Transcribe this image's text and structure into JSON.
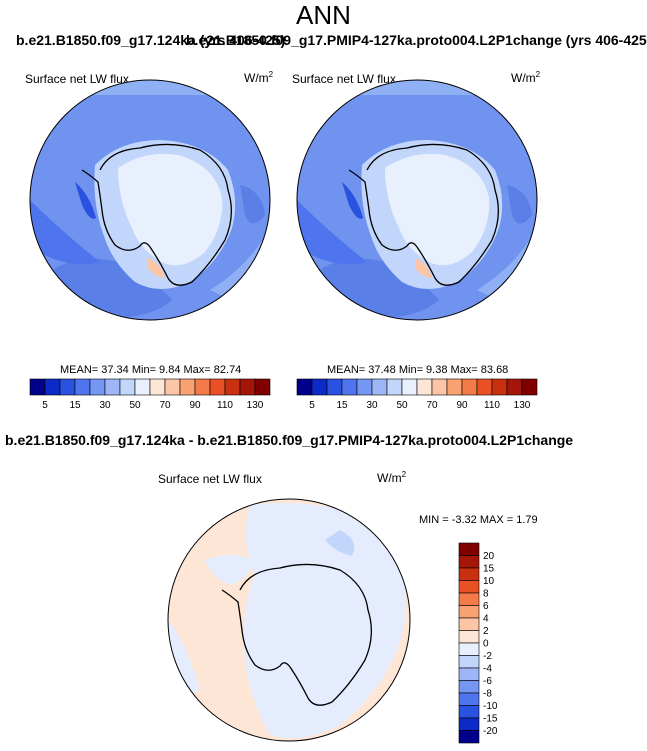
{
  "page": {
    "title": "ANN"
  },
  "panels": [
    {
      "case_title": "b.e21.B1850.f09_g17.124ka (yrs 406-425)",
      "variable": "Surface net LW flux",
      "units": "W/m",
      "units_sup": "2",
      "stats": "MEAN=  37.34  Min=   9.84  Max=  82.74"
    },
    {
      "case_title": "b.e21.B1850.f09_g17.PMIP4-127ka.proto004.L2P1change (yrs 406-425)",
      "variable": "Surface net LW flux",
      "units": "W/m",
      "units_sup": "2",
      "stats": "MEAN=  37.48  Min=   9.38  Max=  83.68"
    },
    {
      "case_title": "b.e21.B1850.f09_g17.124ka - b.e21.B1850.f09_g17.PMIP4-127ka.proto004.L2P1change",
      "variable": "Surface net LW flux",
      "units": "W/m",
      "units_sup": "2",
      "stats": "MIN = -3.32 MAX =   1.79"
    }
  ],
  "chart_data": [
    {
      "type": "heatmap",
      "projection": "south-polar-stereographic",
      "title": "Surface net LW flux",
      "units": "W/m2",
      "stats": {
        "mean": 37.34,
        "min": 9.84,
        "max": 82.74
      },
      "colorbar": {
        "orientation": "horizontal",
        "levels": [
          5,
          10,
          15,
          20,
          30,
          40,
          50,
          60,
          70,
          80,
          90,
          100,
          110,
          120,
          130
        ],
        "tick_labels": [
          "5",
          "15",
          "30",
          "50",
          "70",
          "90",
          "110",
          "130"
        ],
        "colors": [
          "#00008b",
          "#0c2ac8",
          "#2a52e0",
          "#4f75ee",
          "#7596f3",
          "#9cb6f7",
          "#c2d6fb",
          "#e8f0fe",
          "#fde6d6",
          "#fcc5a5",
          "#f9a274",
          "#f37b49",
          "#e95125",
          "#c9300f",
          "#a41608",
          "#800000"
        ]
      }
    },
    {
      "type": "heatmap",
      "projection": "south-polar-stereographic",
      "title": "Surface net LW flux",
      "units": "W/m2",
      "stats": {
        "mean": 37.48,
        "min": 9.38,
        "max": 83.68
      },
      "colorbar": {
        "orientation": "horizontal",
        "levels": [
          5,
          10,
          15,
          20,
          30,
          40,
          50,
          60,
          70,
          80,
          90,
          100,
          110,
          120,
          130
        ],
        "tick_labels": [
          "5",
          "15",
          "30",
          "50",
          "70",
          "90",
          "110",
          "130"
        ],
        "colors": [
          "#00008b",
          "#0c2ac8",
          "#2a52e0",
          "#4f75ee",
          "#7596f3",
          "#9cb6f7",
          "#c2d6fb",
          "#e8f0fe",
          "#fde6d6",
          "#fcc5a5",
          "#f9a274",
          "#f37b49",
          "#e95125",
          "#c9300f",
          "#a41608",
          "#800000"
        ]
      }
    },
    {
      "type": "heatmap",
      "projection": "south-polar-stereographic",
      "title": "Surface net LW flux",
      "units": "W/m2",
      "stats": {
        "min": -3.32,
        "max": 1.79
      },
      "colorbar": {
        "orientation": "vertical",
        "levels": [
          -20,
          -15,
          -10,
          -8,
          -6,
          -4,
          -2,
          0,
          2,
          4,
          6,
          8,
          10,
          15,
          20
        ],
        "tick_labels": [
          "20",
          "15",
          "10",
          "8",
          "6",
          "4",
          "2",
          "0",
          "-2",
          "-4",
          "-6",
          "-8",
          "-10",
          "-15",
          "-20"
        ],
        "colors": [
          "#00008b",
          "#0c2ac8",
          "#2a52e0",
          "#4f75ee",
          "#7596f3",
          "#9cb6f7",
          "#c2d6fb",
          "#e8f0fe",
          "#fde6d6",
          "#fcc5a5",
          "#f9a274",
          "#f37b49",
          "#e95125",
          "#c9300f",
          "#a41608",
          "#800000"
        ]
      }
    }
  ]
}
